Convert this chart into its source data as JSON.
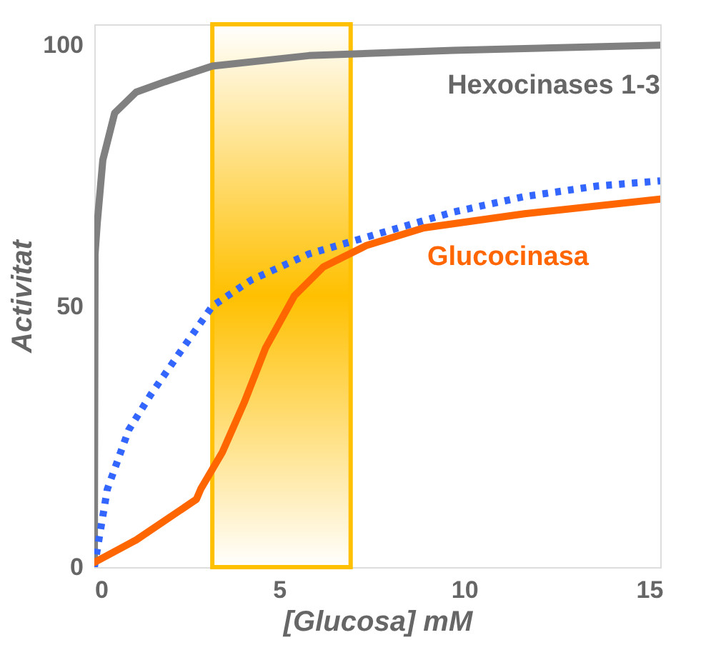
{
  "chart_data": {
    "type": "line",
    "xlabel": "[Glucosa] mM",
    "ylabel": "Activitat",
    "xlim": [
      0,
      15.3
    ],
    "ylim": [
      0,
      104
    ],
    "xticks": [
      0,
      5,
      10,
      15
    ],
    "yticks": [
      0,
      50,
      100
    ],
    "grid": false,
    "marker": "none",
    "bands": [
      {
        "axis": "x",
        "from": 3.19,
        "to": 6.93,
        "color": "#ffc000"
      }
    ],
    "series": [
      {
        "name": "Hexocinases 1-3",
        "color": "#808080",
        "line_style": "solid",
        "x": [
          0,
          0.02,
          0.08,
          0.23,
          0.55,
          1.13,
          1.91,
          3.19,
          5.8,
          9.7,
          15.3
        ],
        "values": [
          0,
          60,
          66,
          78,
          87,
          91,
          93,
          96,
          98,
          99,
          100
        ]
      },
      {
        "color": "#3366ff",
        "line_style": "dotted",
        "x": [
          0,
          0.35,
          0.93,
          1.52,
          2.3,
          3.19,
          4.24,
          5.8,
          7.74,
          9.69,
          11.63,
          13.58,
          15.3
        ],
        "values": [
          0,
          14.9,
          26.3,
          33,
          41,
          50,
          55,
          60,
          64,
          68,
          71,
          73,
          74
        ]
      },
      {
        "name": "Glucocinasa",
        "color": "#ff6600",
        "line_style": "solid",
        "x": [
          0,
          1.13,
          2.76,
          2.88,
          3.46,
          4.05,
          4.63,
          5.41,
          6.19,
          7.35,
          8.91,
          11.63,
          15.3
        ],
        "values": [
          0.9,
          5.2,
          13,
          15,
          22,
          31.5,
          42,
          52,
          57.5,
          61.6,
          65,
          67.7,
          70.5
        ]
      }
    ]
  }
}
